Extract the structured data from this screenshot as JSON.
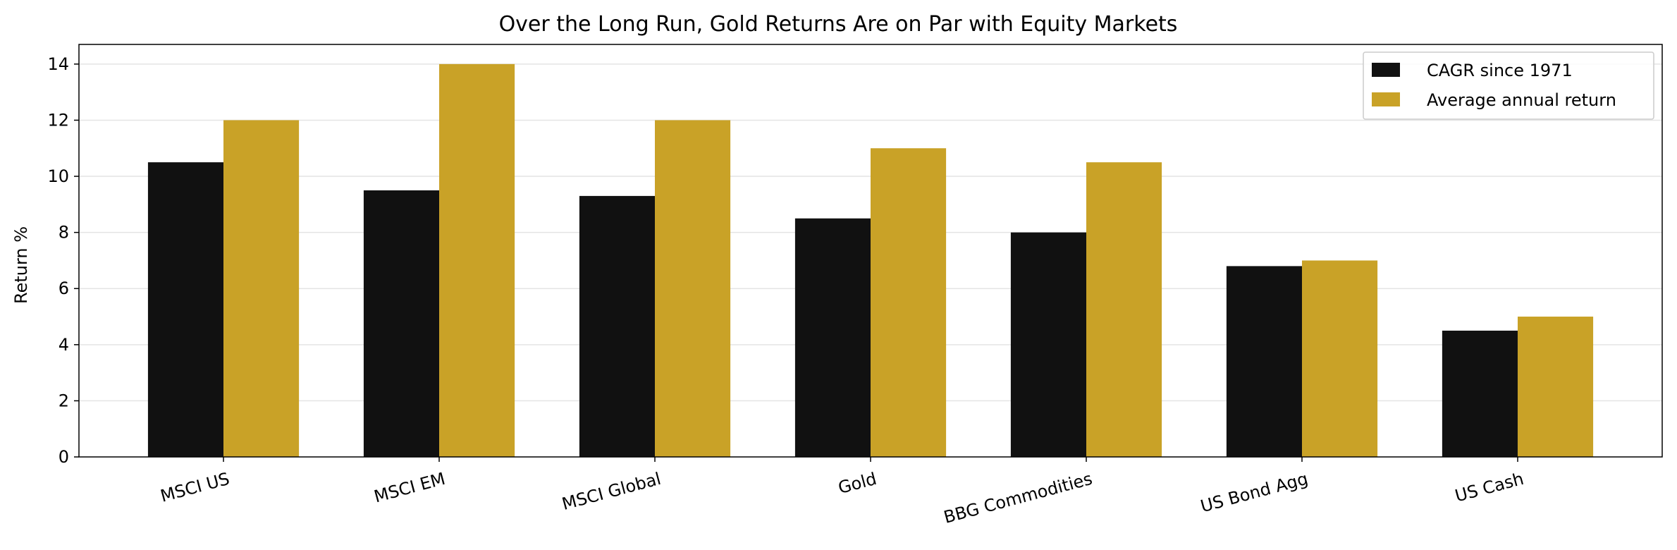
{
  "chart_data": {
    "type": "bar",
    "title": "Over the Long Run, Gold Returns Are on Par with Equity Markets",
    "xlabel": "",
    "ylabel": "Return %",
    "ylim": [
      0,
      14.7
    ],
    "yticks": [
      0,
      2,
      4,
      6,
      8,
      10,
      12,
      14
    ],
    "grid": "y",
    "legend_position": "top-right",
    "categories": [
      "MSCI US",
      "MSCI EM",
      "MSCI Global",
      "Gold",
      "BBG Commodities",
      "US Bond Agg",
      "US Cash"
    ],
    "series": [
      {
        "name": "CAGR since 1971",
        "color": "#111111",
        "values": [
          10.5,
          9.5,
          9.3,
          8.5,
          8.0,
          6.8,
          4.5
        ]
      },
      {
        "name": "Average annual return",
        "color": "#C9A227",
        "values": [
          12.0,
          14.0,
          12.0,
          11.0,
          10.5,
          7.0,
          5.0
        ]
      }
    ]
  }
}
